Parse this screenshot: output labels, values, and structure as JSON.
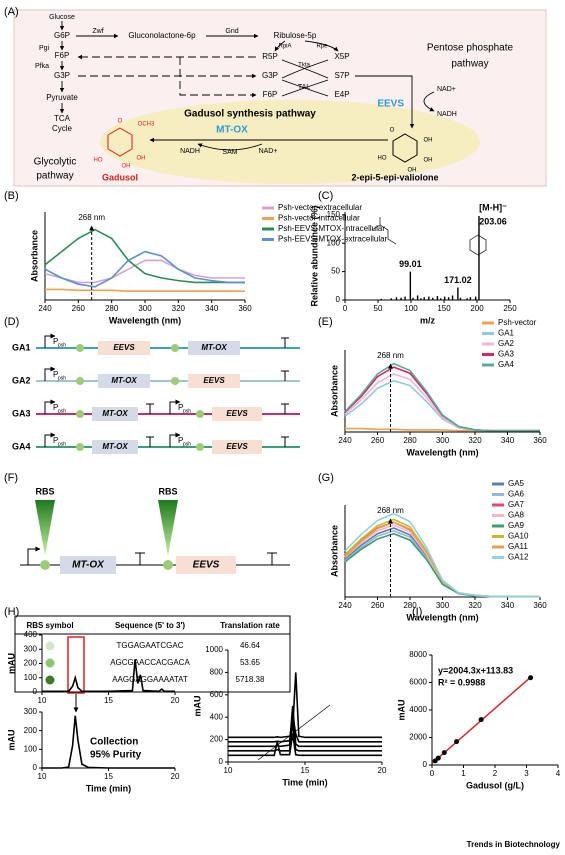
{
  "panel_labels": [
    "(A)",
    "(B)",
    "(C)",
    "(D)",
    "(E)",
    "(F)",
    "(G)",
    "(H)",
    "(I)"
  ],
  "pathway": {
    "labels": [
      "Glucose",
      "G6P",
      "Pgi",
      "F6P",
      "Pfka",
      "G3P",
      "Pyruvate",
      "TCA",
      "Cycle",
      "Glycolytic",
      "pathway",
      "Zwf",
      "Gluconolactone-6p",
      "Gnd",
      "Ribulose-5p",
      "RpiA",
      "Rpe",
      "R5P",
      "X5P",
      "Tkta",
      "G3P",
      "S7P",
      "TAL",
      "F6P",
      "E4P",
      "Pentose  phosphate",
      "pathway",
      "EEVS",
      "NAD+",
      "NADH",
      "Gadusol synthesis pathway",
      "MT-OX",
      "NADH",
      "SAM",
      "NAD+",
      "Gadusol",
      "2-epi-5-epi-valiolone"
    ],
    "gadusol_atoms": [
      "O",
      "OCH3",
      "HO",
      "OH",
      "OH"
    ],
    "valiolone_atoms": [
      "O",
      "OH",
      "OH",
      "OH",
      "HO"
    ]
  },
  "constructs": {
    "promoter_symbol": "P",
    "items": [
      {
        "name": "GA1",
        "color": "#3aa6b0",
        "promoters": [
          "psh"
        ],
        "genes": [
          "EEVS",
          "MT-OX"
        ]
      },
      {
        "name": "GA2",
        "color": "#9fc3d6",
        "promoters": [
          "psh"
        ],
        "genes": [
          "MT-OX",
          "EEVS"
        ]
      },
      {
        "name": "GA3",
        "color": "#c2306e",
        "promoters": [
          "psh",
          "psh"
        ],
        "genes": [
          "MT-OX",
          "EEVS"
        ]
      },
      {
        "name": "GA4",
        "color": "#3aa07a",
        "promoters": [
          "psh",
          "psh"
        ],
        "genes": [
          "MT-OX",
          "EEVS"
        ]
      }
    ]
  },
  "rbs_design": {
    "rbs": [
      "RBS",
      "RBS"
    ],
    "genes": [
      "MT-OX",
      "EEVS"
    ],
    "table": {
      "header": [
        "RBS symbol",
        "Sequence (5' to 3')",
        "Translation rate"
      ],
      "rows": [
        {
          "color": "#d4e9c2",
          "sequence": "TGGAGAATCGAC",
          "rate": 46.64
        },
        {
          "color": "#8cc56a",
          "sequence": "AGCGAACCACGACA",
          "rate": 53.65
        },
        {
          "color": "#3f7a2c",
          "sequence": "AAGGAGGAAAATAT",
          "rate": 5718.38
        }
      ]
    }
  },
  "panel_h_note": [
    "Collection",
    "95% Purity"
  ],
  "footer": "Trends in Biotechnology",
  "chart_data": [
    {
      "type": "line",
      "xlabel": "Wavelength (nm)",
      "ylabel": "Absorbance",
      "xlim": [
        240,
        360
      ],
      "xticks": [
        240,
        260,
        280,
        300,
        320,
        340,
        360
      ],
      "ylim": [
        0,
        1
      ],
      "x": [
        240,
        250,
        260,
        270,
        280,
        290,
        300,
        310,
        320,
        330,
        340,
        350,
        360
      ],
      "annotation": {
        "text": "268 nm",
        "x": 268
      },
      "series": [
        {
          "name": "Psh-vector-extracellular",
          "color": "#d8a0d0",
          "values": [
            0.3,
            0.25,
            0.2,
            0.2,
            0.25,
            0.35,
            0.45,
            0.45,
            0.35,
            0.28,
            0.25,
            0.25,
            0.25
          ]
        },
        {
          "name": "Psh-vector-intracellular",
          "color": "#f0a050",
          "values": [
            0.12,
            0.12,
            0.11,
            0.11,
            0.11,
            0.1,
            0.1,
            0.1,
            0.1,
            0.1,
            0.1,
            0.1,
            0.1
          ]
        },
        {
          "name": "Psh-EEVS-MTOX-intracellular",
          "color": "#2e8b57",
          "values": [
            0.4,
            0.55,
            0.7,
            0.8,
            0.7,
            0.45,
            0.3,
            0.25,
            0.22,
            0.2,
            0.2,
            0.2,
            0.2
          ]
        },
        {
          "name": "Psh-EEVS-MTOX-extracellular",
          "color": "#5b8fd6",
          "values": [
            0.35,
            0.25,
            0.18,
            0.15,
            0.25,
            0.45,
            0.55,
            0.5,
            0.35,
            0.25,
            0.22,
            0.2,
            0.2
          ]
        }
      ]
    },
    {
      "type": "stem",
      "xlabel": "m/z",
      "ylabel": "Relative abundance (%)",
      "xlim": [
        0,
        250
      ],
      "xticks": [
        0,
        50,
        100,
        150,
        200,
        250
      ],
      "ylim": [
        0,
        155
      ],
      "yticks": [
        0,
        50,
        100,
        150
      ],
      "color": "#000000",
      "x": [
        55,
        60,
        70,
        78,
        85,
        91,
        99,
        103,
        110,
        115,
        120,
        127,
        133,
        140,
        145,
        151,
        157,
        163,
        171,
        175,
        185,
        190,
        198,
        203
      ],
      "values": [
        2,
        1,
        3,
        5,
        4,
        6,
        50,
        4,
        8,
        3,
        5,
        6,
        4,
        7,
        3,
        6,
        5,
        8,
        22,
        4,
        3,
        5,
        6,
        148
      ],
      "peak_labels": [
        99.01,
        171.02,
        203.06
      ],
      "ion_label": "[M-H]⁻"
    },
    {
      "type": "line",
      "xlabel": "Wavelength (nm)",
      "ylabel": "Absorbance",
      "xlim": [
        240,
        360
      ],
      "xticks": [
        240,
        260,
        280,
        300,
        320,
        340,
        360
      ],
      "ylim": [
        0,
        1.2
      ],
      "x": [
        240,
        250,
        260,
        270,
        280,
        290,
        300,
        310,
        320,
        330,
        340,
        350,
        360
      ],
      "annotation": {
        "text": "268 nm",
        "x": 268
      },
      "series": [
        {
          "name": "Psh-vector",
          "color": "#f0a050",
          "values": [
            0.05,
            0.05,
            0.04,
            0.04,
            0.03,
            0.03,
            0.03,
            0.02,
            0.02,
            0.02,
            0.02,
            0.02,
            0.02
          ]
        },
        {
          "name": "GA1",
          "color": "#8ec9e8",
          "values": [
            0.23,
            0.41,
            0.64,
            0.75,
            0.68,
            0.45,
            0.19,
            0.06,
            0.02,
            0.02,
            0.02,
            0.02,
            0.02
          ]
        },
        {
          "name": "GA2",
          "color": "#f4b6d2",
          "values": [
            0.26,
            0.47,
            0.72,
            0.85,
            0.77,
            0.51,
            0.21,
            0.07,
            0.03,
            0.02,
            0.02,
            0.02,
            0.02
          ]
        },
        {
          "name": "GA3",
          "color": "#d6246e",
          "values": [
            0.29,
            0.52,
            0.81,
            0.95,
            0.86,
            0.57,
            0.24,
            0.08,
            0.03,
            0.02,
            0.02,
            0.02,
            0.02
          ]
        },
        {
          "name": "GA4",
          "color": "#5aad8f",
          "values": [
            0.3,
            0.55,
            0.85,
            1.0,
            0.9,
            0.6,
            0.25,
            0.08,
            0.03,
            0.02,
            0.02,
            0.02,
            0.02
          ]
        }
      ]
    },
    {
      "type": "line",
      "xlabel": "Wavelength (nm)",
      "ylabel": "Absorbance",
      "xlim": [
        240,
        360
      ],
      "xticks": [
        240,
        260,
        280,
        300,
        320,
        340,
        360
      ],
      "ylim": [
        0,
        1.6
      ],
      "x": [
        240,
        250,
        260,
        270,
        280,
        290,
        300,
        310,
        320,
        330,
        340,
        350,
        360
      ],
      "annotation": {
        "text": "268 nm",
        "x": 268
      },
      "series": [
        {
          "name": "GA5",
          "color": "#5b7fb5",
          "values": [
            0.66,
            0.9,
            1.1,
            1.2,
            1.08,
            0.72,
            0.24,
            0.06,
            0.02,
            0.01,
            0.01,
            0.01,
            0.01
          ]
        },
        {
          "name": "GA6",
          "color": "#9bb5d6",
          "values": [
            0.63,
            0.86,
            1.06,
            1.15,
            1.04,
            0.69,
            0.23,
            0.06,
            0.02,
            0.01,
            0.01,
            0.01,
            0.01
          ]
        },
        {
          "name": "GA7",
          "color": "#e0457b",
          "values": [
            0.72,
            0.98,
            1.2,
            1.3,
            1.17,
            0.78,
            0.26,
            0.07,
            0.03,
            0.01,
            0.01,
            0.01,
            0.01
          ]
        },
        {
          "name": "GA8",
          "color": "#f2b8c6",
          "values": [
            0.69,
            0.94,
            1.15,
            1.25,
            1.13,
            0.75,
            0.25,
            0.06,
            0.03,
            0.01,
            0.01,
            0.01,
            0.01
          ]
        },
        {
          "name": "GA9",
          "color": "#3c9e6e",
          "values": [
            0.61,
            0.83,
            1.01,
            1.1,
            0.99,
            0.66,
            0.22,
            0.06,
            0.02,
            0.01,
            0.01,
            0.01,
            0.01
          ]
        },
        {
          "name": "GA10",
          "color": "#c9b829",
          "values": [
            0.74,
            1.01,
            1.24,
            1.35,
            1.22,
            0.81,
            0.27,
            0.07,
            0.03,
            0.01,
            0.01,
            0.01,
            0.01
          ]
        },
        {
          "name": "GA11",
          "color": "#e8a04c",
          "values": [
            0.7,
            0.97,
            1.19,
            1.3,
            1.18,
            0.79,
            0.27,
            0.07,
            0.03,
            0.01,
            0.01,
            0.01,
            0.01
          ]
        },
        {
          "name": "GA12",
          "color": "#8fd0e6",
          "values": [
            0.8,
            1.09,
            1.33,
            1.45,
            1.31,
            0.87,
            0.29,
            0.07,
            0.03,
            0.01,
            0.01,
            0.01,
            0.01
          ]
        }
      ]
    },
    {
      "type": "line",
      "ylabel": "mAU",
      "xlim": [
        10,
        20
      ],
      "xticks": [
        10,
        15,
        20
      ],
      "ylim": [
        0,
        400
      ],
      "yticks": [
        0,
        100,
        200,
        300,
        400
      ],
      "x": [
        10,
        11,
        12,
        12.3,
        12.5,
        12.7,
        13,
        15,
        16.8,
        17,
        17.2,
        17.4,
        17.6,
        18.8,
        19,
        19.2,
        20
      ],
      "series": [
        {
          "color": "#000000",
          "values": [
            5,
            5,
            5,
            40,
            100,
            30,
            5,
            5,
            10,
            230,
            60,
            120,
            10,
            5,
            20,
            5,
            5
          ]
        }
      ]
    },
    {
      "type": "line",
      "ylabel": "mAU",
      "xlabel": "Time (min)",
      "xlim": [
        10,
        20
      ],
      "xticks": [
        10,
        15,
        20
      ],
      "ylim": [
        0,
        300
      ],
      "yticks": [
        0,
        100,
        200,
        300
      ],
      "x": [
        10,
        11.5,
        12,
        12.3,
        12.5,
        12.7,
        13,
        13.5,
        15,
        20
      ],
      "series": [
        {
          "color": "#000000",
          "values": [
            0,
            0,
            5,
            120,
            280,
            150,
            20,
            3,
            0,
            0
          ]
        }
      ]
    },
    {
      "type": "line",
      "ylabel": "mAU",
      "xlabel": "Time (min)",
      "xlim": [
        10,
        20
      ],
      "xticks": [
        10,
        15,
        20
      ],
      "ylim": [
        0,
        1000
      ],
      "yticks": [
        0,
        200,
        400,
        600,
        800,
        1000
      ],
      "x": [
        10,
        13,
        13.2,
        13.4,
        14,
        14.2,
        14.4,
        14.6,
        15,
        20
      ],
      "series": [
        {
          "color": "#000000",
          "values": [
            60,
            60,
            180,
            65,
            65,
            250,
            65,
            60,
            60,
            60
          ]
        },
        {
          "color": "#000000",
          "values": [
            100,
            100,
            110,
            100,
            100,
            350,
            110,
            100,
            100,
            100
          ]
        },
        {
          "color": "#000000",
          "values": [
            140,
            140,
            145,
            140,
            150,
            500,
            160,
            140,
            140,
            140
          ]
        },
        {
          "color": "#000000",
          "values": [
            180,
            180,
            185,
            180,
            190,
            420,
            250,
            180,
            180,
            180
          ]
        },
        {
          "color": "#000000",
          "values": [
            220,
            220,
            225,
            220,
            230,
            300,
            800,
            230,
            220,
            220
          ]
        }
      ]
    },
    {
      "type": "scatter",
      "xlabel": "Gadusol  (g/L)",
      "ylabel": "mAU",
      "xlim": [
        0,
        4
      ],
      "xticks": [
        0,
        1,
        2,
        3,
        4
      ],
      "ylim": [
        0,
        8000
      ],
      "yticks": [
        0,
        2000,
        4000,
        6000,
        8000
      ],
      "color": "#000000",
      "x": [
        0.1,
        0.2,
        0.39,
        0.78,
        1.56,
        3.13
      ],
      "values": [
        300,
        500,
        900,
        1700,
        3300,
        6350
      ],
      "fit": {
        "slope": 2004.3,
        "intercept": 113.83,
        "color": "#d62728",
        "label": "y=2004.3x+113.83"
      },
      "r2_label": "R² = 0.9988"
    }
  ]
}
